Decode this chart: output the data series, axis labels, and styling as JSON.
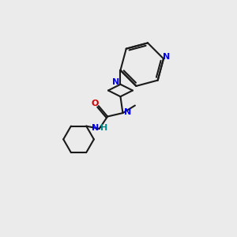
{
  "background_color": "#ebebeb",
  "bond_color": "#1a1a1a",
  "nitrogen_color": "#0000ee",
  "oxygen_color": "#cc0000",
  "hydrogen_color": "#008888",
  "line_width": 1.5,
  "figsize": [
    3.0,
    3.0
  ],
  "dpi": 100,
  "xlim": [
    0,
    10
  ],
  "ylim": [
    0,
    10
  ]
}
